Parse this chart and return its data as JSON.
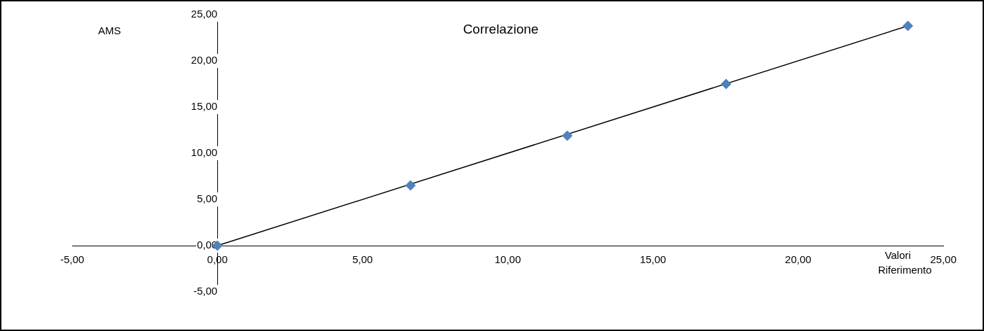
{
  "chart_data": {
    "type": "scatter",
    "title": "Correlazione",
    "xlabel": "Valori Riferimento",
    "ylabel": "AMS",
    "x": [
      0,
      6.65,
      12.05,
      17.52,
      23.78
    ],
    "series": [
      {
        "type": "scatter",
        "color": "#4f81bd",
        "marker": "diamond",
        "values": [
          0,
          6.52,
          11.9,
          17.5,
          23.79
        ]
      },
      {
        "type": "line",
        "color": "#000000",
        "marker": "none",
        "x": [
          0,
          23.78
        ],
        "values": [
          0,
          23.79
        ]
      }
    ],
    "xlim": [
      -5,
      25
    ],
    "ylim": [
      -5,
      25
    ],
    "xticks": [
      {
        "value": -5,
        "label": "-5,00"
      },
      {
        "value": 0,
        "label": "0,00"
      },
      {
        "value": 5,
        "label": "5,00"
      },
      {
        "value": 10,
        "label": "10,00"
      },
      {
        "value": 15,
        "label": "15,00"
      },
      {
        "value": 20,
        "label": "20,00"
      },
      {
        "value": 25,
        "label": "25,00"
      }
    ],
    "yticks": [
      {
        "value": -5,
        "label": "-5,00"
      },
      {
        "value": 0,
        "label": "0,00"
      },
      {
        "value": 5,
        "label": "5,00"
      },
      {
        "value": 10,
        "label": "10,00"
      },
      {
        "value": 15,
        "label": "15,00"
      },
      {
        "value": 20,
        "label": "20,00"
      },
      {
        "value": 25,
        "label": "25,00"
      }
    ],
    "grid": false,
    "legend": false
  }
}
